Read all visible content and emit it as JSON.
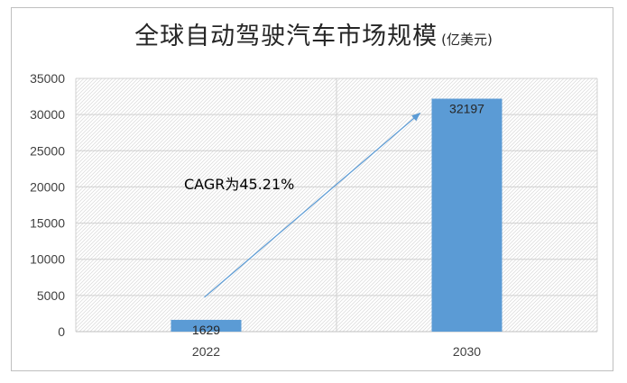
{
  "chart_data": {
    "type": "bar",
    "title": "全球自动驾驶汽车市场规模",
    "unit": "(亿美元)",
    "categories": [
      "2022",
      "2030"
    ],
    "values": [
      1629,
      32197
    ],
    "data_labels": [
      "1629",
      "32197"
    ],
    "ylim": [
      0,
      35000
    ],
    "yticks": [
      "0",
      "5000",
      "10000",
      "15000",
      "20000",
      "25000",
      "30000",
      "35000"
    ],
    "grid": true,
    "annotation": "CAGR为45.21%",
    "bar_color": "#5b9bd5",
    "arrow_color": "#5b9bd5"
  }
}
